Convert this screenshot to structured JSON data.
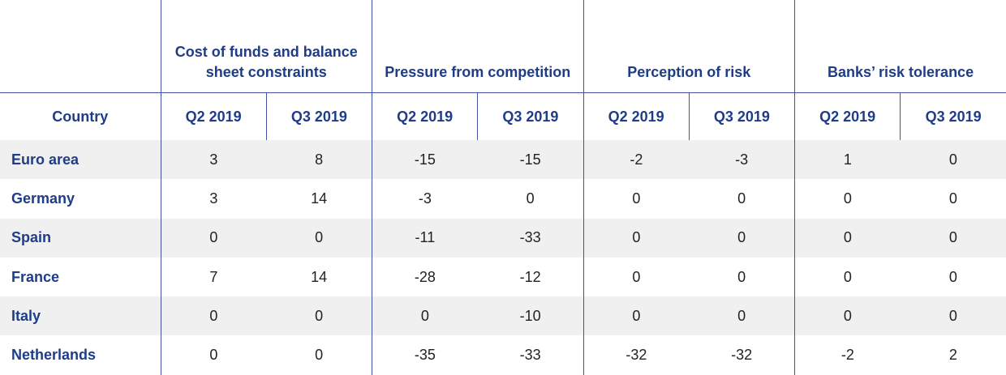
{
  "groups": [
    "Cost of funds and balance sheet constraints",
    "Pressure from competition",
    "Perception of risk",
    "Banks’ risk tolerance"
  ],
  "country_header": "Country",
  "periods": [
    "Q2 2019",
    "Q3 2019"
  ],
  "rows": [
    {
      "country": "Euro area",
      "values": [
        "3",
        "8",
        "-15",
        "-15",
        "-2",
        "-3",
        "1",
        "0"
      ]
    },
    {
      "country": "Germany",
      "values": [
        "3",
        "14",
        "-3",
        "0",
        "0",
        "0",
        "0",
        "0"
      ]
    },
    {
      "country": "Spain",
      "values": [
        "0",
        "0",
        "-11",
        "-33",
        "0",
        "0",
        "0",
        "0"
      ]
    },
    {
      "country": "France",
      "values": [
        "7",
        "14",
        "-28",
        "-12",
        "0",
        "0",
        "0",
        "0"
      ]
    },
    {
      "country": "Italy",
      "values": [
        "0",
        "0",
        "0",
        "-10",
        "0",
        "0",
        "0",
        "0"
      ]
    },
    {
      "country": "Netherlands",
      "values": [
        "0",
        "0",
        "-35",
        "-33",
        "-32",
        "-32",
        "-2",
        "2"
      ]
    }
  ],
  "colors": {
    "header_text": "#1f3c88",
    "rule": "#3f51a3",
    "stripe": "#f0f0f0"
  }
}
